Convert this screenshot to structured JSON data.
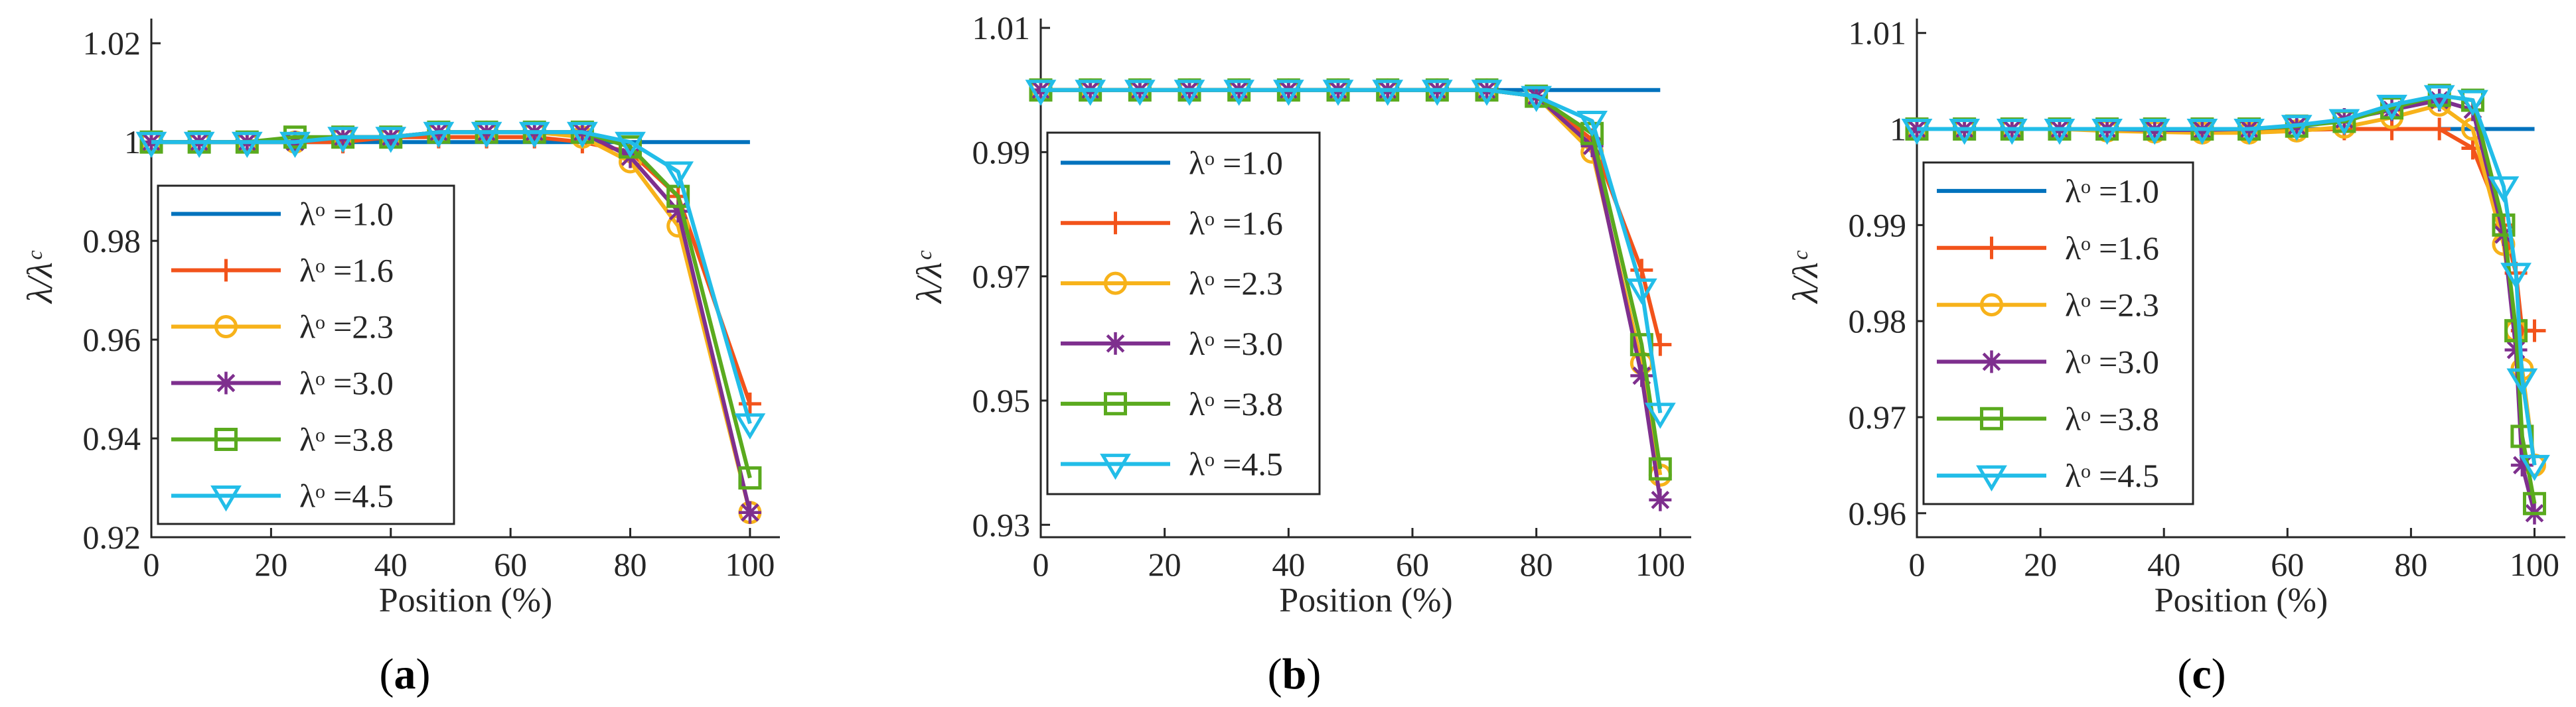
{
  "colors": {
    "l10": "#0072BD",
    "l16": "#F2531B",
    "l23": "#F7B21A",
    "l30": "#7E2F8E",
    "l38": "#5AAA1E",
    "l45": "#22BDE8"
  },
  "chart_data": [
    {
      "type": "line",
      "panel_label": "a",
      "xlabel": "Position (%)",
      "ylabel": "λ/λᶜ",
      "xlim": [
        0,
        105
      ],
      "ylim": [
        0.92,
        1.025
      ],
      "xticks": [
        0,
        20,
        40,
        60,
        80,
        100
      ],
      "yticks": [
        "0.92",
        "0.94",
        "0.96",
        "0.98",
        "1",
        "1.02"
      ],
      "legend": {
        "placement": "bottom-left",
        "entries": [
          "λᵒ =1.0",
          "λᵒ =1.6",
          "λᵒ =2.3",
          "λᵒ =3.0",
          "λᵒ =3.8",
          "λᵒ =4.5"
        ]
      },
      "x": [
        0,
        8,
        16,
        24,
        32,
        40,
        48,
        56,
        64,
        72,
        80,
        88,
        100
      ],
      "series": [
        {
          "name": "λᵒ =1.0",
          "color_key": "l10",
          "marker": "none",
          "values": [
            1.0,
            1.0,
            1.0,
            1.0,
            1.0,
            1.0,
            1.0,
            1.0,
            1.0,
            1.0,
            1.0,
            1.0,
            1.0
          ]
        },
        {
          "name": "λᵒ =1.6",
          "color_key": "l16",
          "marker": "plus",
          "values": [
            1.0,
            1.0,
            1.0,
            1.0,
            1.0,
            1.001,
            1.001,
            1.001,
            1.001,
            1.0,
            0.998,
            0.989,
            0.947
          ]
        },
        {
          "name": "λᵒ =2.3",
          "color_key": "l23",
          "marker": "circle",
          "values": [
            1.0,
            1.0,
            1.0,
            1.0,
            1.001,
            1.001,
            1.002,
            1.002,
            1.002,
            1.001,
            0.996,
            0.983,
            0.925
          ]
        },
        {
          "name": "λᵒ =3.0",
          "color_key": "l30",
          "marker": "asterisk",
          "values": [
            1.0,
            1.0,
            1.0,
            1.0,
            1.001,
            1.001,
            1.002,
            1.002,
            1.002,
            1.002,
            0.997,
            0.986,
            0.925
          ]
        },
        {
          "name": "λᵒ =3.8",
          "color_key": "l38",
          "marker": "square",
          "values": [
            1.0,
            1.0,
            1.0,
            1.001,
            1.001,
            1.001,
            1.002,
            1.002,
            1.002,
            1.002,
            0.999,
            0.989,
            0.932
          ]
        },
        {
          "name": "λᵒ =4.5",
          "color_key": "l45",
          "marker": "triangle-down",
          "values": [
            1.0,
            1.0,
            1.0,
            1.0,
            1.001,
            1.001,
            1.002,
            1.002,
            1.002,
            1.002,
            1.0,
            0.994,
            0.943
          ]
        }
      ]
    },
    {
      "type": "line",
      "panel_label": "b",
      "xlabel": "Position (%)",
      "ylabel": "λ/λᶜ",
      "xlim": [
        0,
        105
      ],
      "ylim": [
        0.928,
        1.0115
      ],
      "xticks": [
        0,
        20,
        40,
        60,
        80,
        100
      ],
      "yticks": [
        "0.93",
        "0.95",
        "0.97",
        "0.99",
        "1.01"
      ],
      "legend": {
        "placement": "bottom-left",
        "entries": [
          "λᵒ =1.0",
          "λᵒ =1.6",
          "λᵒ =2.3",
          "λᵒ =3.0",
          "λᵒ =3.8",
          "λᵒ =4.5"
        ]
      },
      "x": [
        0,
        8,
        16,
        24,
        32,
        40,
        48,
        56,
        64,
        72,
        80,
        89,
        97,
        100
      ],
      "series": [
        {
          "name": "λᵒ =1.0",
          "color_key": "l10",
          "marker": "none",
          "values": [
            1.0,
            1.0,
            1.0,
            1.0,
            1.0,
            1.0,
            1.0,
            1.0,
            1.0,
            1.0,
            1.0,
            1.0,
            1.0,
            1.0
          ]
        },
        {
          "name": "λᵒ =1.6",
          "color_key": "l16",
          "marker": "plus",
          "values": [
            1.0,
            1.0,
            1.0,
            1.0,
            1.0,
            1.0,
            1.0,
            1.0,
            1.0,
            1.0,
            0.999,
            0.992,
            0.971,
            0.959
          ]
        },
        {
          "name": "λᵒ =2.3",
          "color_key": "l23",
          "marker": "circle",
          "values": [
            1.0,
            1.0,
            1.0,
            1.0,
            1.0,
            1.0,
            1.0,
            1.0,
            1.0,
            1.0,
            0.999,
            0.99,
            0.956,
            0.938
          ]
        },
        {
          "name": "λᵒ =3.0",
          "color_key": "l30",
          "marker": "asterisk",
          "values": [
            1.0,
            1.0,
            1.0,
            1.0,
            1.0,
            1.0,
            1.0,
            1.0,
            1.0,
            1.0,
            0.999,
            0.991,
            0.954,
            0.934
          ]
        },
        {
          "name": "λᵒ =3.8",
          "color_key": "l38",
          "marker": "square",
          "values": [
            1.0,
            1.0,
            1.0,
            1.0,
            1.0,
            1.0,
            1.0,
            1.0,
            1.0,
            1.0,
            0.999,
            0.993,
            0.959,
            0.939
          ]
        },
        {
          "name": "λᵒ =4.5",
          "color_key": "l45",
          "marker": "triangle-down",
          "values": [
            1.0,
            1.0,
            1.0,
            1.0,
            1.0,
            1.0,
            1.0,
            1.0,
            1.0,
            1.0,
            0.999,
            0.995,
            0.968,
            0.948
          ]
        }
      ]
    },
    {
      "type": "line",
      "panel_label": "c",
      "xlabel": "Position (%)",
      "ylabel": "λ/λᶜ",
      "xlim": [
        0,
        105
      ],
      "ylim": [
        0.9575,
        1.0115
      ],
      "xticks": [
        0,
        20,
        40,
        60,
        80,
        100
      ],
      "yticks": [
        "0.96",
        "0.97",
        "0.98",
        "0.99",
        "1",
        "1.01"
      ],
      "legend": {
        "placement": "bottom-left",
        "entries": [
          "λᵒ =1.0",
          "λᵒ =1.6",
          "λᵒ =2.3",
          "λᵒ =3.0",
          "λᵒ =3.8",
          "λᵒ =4.5"
        ]
      },
      "x": [
        0,
        7.7,
        15.4,
        23.1,
        30.8,
        38.5,
        46.2,
        53.8,
        61.5,
        69.2,
        76.9,
        84.6,
        90,
        95,
        97,
        98,
        100
      ],
      "series": [
        {
          "name": "λᵒ =1.0",
          "color_key": "l10",
          "marker": "none",
          "values": [
            1.0,
            1.0,
            1.0,
            1.0,
            1.0,
            1.0,
            1.0,
            1.0,
            1.0,
            1.0,
            1.0,
            1.0,
            1.0,
            1.0,
            1.0,
            1.0,
            1.0
          ]
        },
        {
          "name": "λᵒ =1.6",
          "color_key": "l16",
          "marker": "plus",
          "values": [
            1.0,
            1.0,
            1.0,
            1.0,
            1.0,
            0.9998,
            0.9998,
            0.9998,
            0.9999,
            1.0,
            1.0,
            1.0,
            0.998,
            0.99,
            0.985,
            0.979,
            0.979
          ]
        },
        {
          "name": "λᵒ =2.3",
          "color_key": "l23",
          "marker": "circle",
          "values": [
            1.0,
            1.0,
            1.0,
            1.0,
            0.9998,
            0.9997,
            0.9996,
            0.9996,
            0.9998,
            1.0002,
            1.0012,
            1.0025,
            1.0,
            0.988,
            0.979,
            0.975,
            0.965
          ]
        },
        {
          "name": "λᵒ =3.0",
          "color_key": "l30",
          "marker": "asterisk",
          "values": [
            1.0,
            1.0,
            1.0,
            1.0,
            1.0,
            0.9999,
            0.9999,
            1.0,
            1.0003,
            1.001,
            1.002,
            1.003,
            1.002,
            0.989,
            0.977,
            0.965,
            0.96
          ]
        },
        {
          "name": "λᵒ =3.8",
          "color_key": "l38",
          "marker": "square",
          "values": [
            1.0,
            1.0,
            1.0,
            1.0,
            1.0,
            1.0,
            1.0,
            1.0,
            1.0003,
            1.0008,
            1.0022,
            1.0035,
            1.003,
            0.99,
            0.979,
            0.968,
            0.961
          ]
        },
        {
          "name": "λᵒ =4.5",
          "color_key": "l45",
          "marker": "triangle-down",
          "values": [
            1.0,
            1.0,
            1.0,
            1.0,
            1.0,
            1.0,
            1.0,
            1.0,
            1.0004,
            1.001,
            1.0025,
            1.0035,
            1.003,
            0.994,
            0.985,
            0.974,
            0.965
          ]
        }
      ]
    }
  ]
}
